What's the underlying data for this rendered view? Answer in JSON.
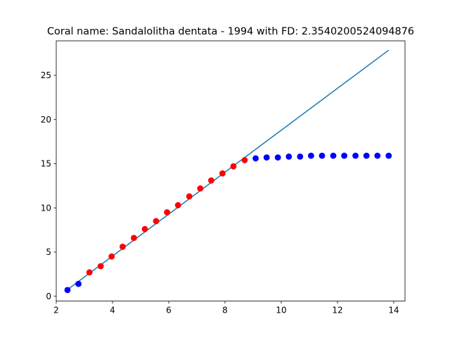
{
  "chart_data": {
    "type": "scatter",
    "title": "Coral name: Sandalolitha dentata - 1994 with FD: 2.3540200524094876",
    "xlabel": "",
    "ylabel": "",
    "xlim": [
      2.0,
      14.4
    ],
    "ylim": [
      -0.55,
      28.9
    ],
    "xticks": [
      2,
      4,
      6,
      8,
      10,
      12,
      14
    ],
    "yticks": [
      0,
      5,
      10,
      15,
      20,
      25
    ],
    "grid": false,
    "legend": "none",
    "series": [
      {
        "kind": "scatter",
        "color": "#ff0000",
        "x": [
          3.18,
          3.58,
          3.97,
          4.36,
          4.76,
          5.15,
          5.55,
          5.94,
          6.33,
          6.73,
          7.12,
          7.51,
          7.91,
          8.3,
          8.7
        ],
        "y": [
          2.7,
          3.4,
          4.5,
          5.6,
          6.6,
          7.6,
          8.5,
          9.5,
          10.3,
          11.3,
          12.2,
          13.1,
          13.9,
          14.7,
          15.4
        ]
      },
      {
        "kind": "scatter",
        "color": "#0000ff",
        "x": [
          2.4,
          2.79,
          9.09,
          9.48,
          9.88,
          10.27,
          10.67,
          11.06,
          11.45,
          11.85,
          12.24,
          12.64,
          13.03,
          13.42,
          13.82
        ],
        "y": [
          0.7,
          1.4,
          15.6,
          15.7,
          15.7,
          15.8,
          15.8,
          15.9,
          15.9,
          15.9,
          15.9,
          15.9,
          15.9,
          15.9,
          15.9
        ]
      },
      {
        "kind": "line",
        "color": "#1f77b4",
        "x": [
          2.4,
          13.82
        ],
        "y": [
          0.75,
          27.85
        ]
      }
    ]
  }
}
